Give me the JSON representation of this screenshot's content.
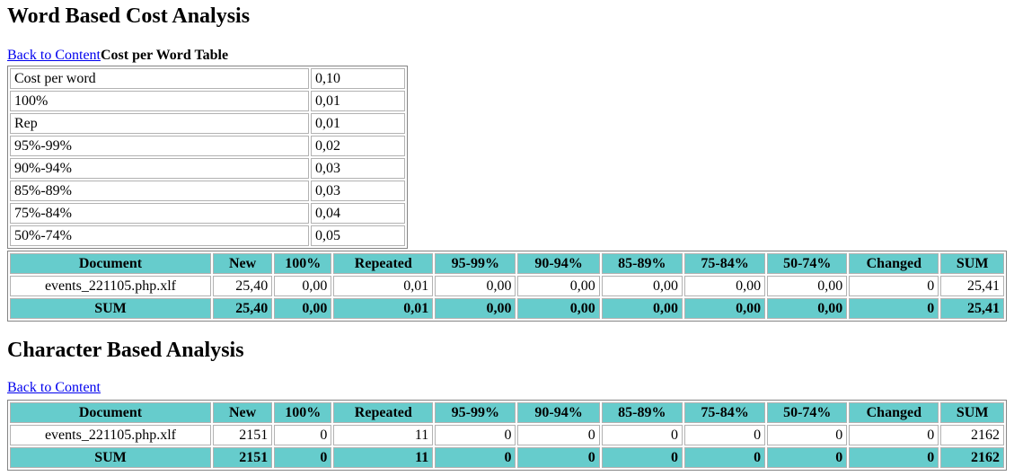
{
  "colors": {
    "header_bg": "#66CCCC",
    "link": "#0000EE"
  },
  "word_section": {
    "title": "Word Based Cost Analysis",
    "back_link": "Back to Content",
    "subtable_title": "Cost per Word Table"
  },
  "char_section": {
    "title": "Character Based Analysis",
    "back_link": "Back to Content"
  },
  "cost_table": {
    "rows": [
      [
        "Cost per word",
        "0,10"
      ],
      [
        "100%",
        "0,01"
      ],
      [
        "Rep",
        "0,01"
      ],
      [
        "95%-99%",
        "0,02"
      ],
      [
        "90%-94%",
        "0,03"
      ],
      [
        "85%-89%",
        "0,03"
      ],
      [
        "75%-84%",
        "0,04"
      ],
      [
        "50%-74%",
        "0,05"
      ]
    ]
  },
  "word_table": {
    "headers": [
      "Document",
      "New",
      "100%",
      "Repeated",
      "95-99%",
      "90-94%",
      "85-89%",
      "75-84%",
      "50-74%",
      "Changed",
      "SUM"
    ],
    "rows": [
      [
        "events_221105.php.xlf",
        "25,40",
        "0,00",
        "0,01",
        "0,00",
        "0,00",
        "0,00",
        "0,00",
        "0,00",
        "0",
        "25,41"
      ]
    ],
    "sum_row": [
      "SUM",
      "25,40",
      "0,00",
      "0,01",
      "0,00",
      "0,00",
      "0,00",
      "0,00",
      "0,00",
      "0",
      "25,41"
    ]
  },
  "char_table": {
    "headers": [
      "Document",
      "New",
      "100%",
      "Repeated",
      "95-99%",
      "90-94%",
      "85-89%",
      "75-84%",
      "50-74%",
      "Changed",
      "SUM"
    ],
    "rows": [
      [
        "events_221105.php.xlf",
        "2151",
        "0",
        "11",
        "0",
        "0",
        "0",
        "0",
        "0",
        "0",
        "2162"
      ]
    ],
    "sum_row": [
      "SUM",
      "2151",
      "0",
      "11",
      "0",
      "0",
      "0",
      "0",
      "0",
      "0",
      "2162"
    ]
  }
}
